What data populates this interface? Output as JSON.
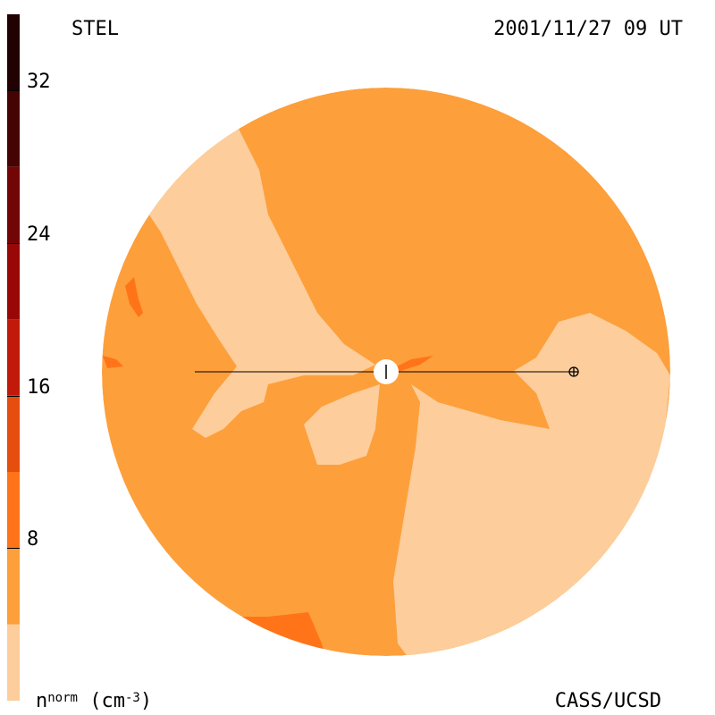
{
  "header": {
    "station": "STEL",
    "datetime": "2001/11/27 09 UT"
  },
  "footer": {
    "unit_prefix": "n",
    "unit_sup": "norm",
    "unit_suffix": " (cm",
    "unit_exp": "-3",
    "unit_close": ")",
    "credit": "CASS/UCSD"
  },
  "colorbar": {
    "ticks": [
      {
        "value": 8,
        "label": "8"
      },
      {
        "value": 16,
        "label": "16"
      },
      {
        "value": 24,
        "label": "24"
      },
      {
        "value": 32,
        "label": "32"
      }
    ],
    "range": [
      0,
      36
    ],
    "bands": [
      {
        "from": 0,
        "to": 4,
        "color": "#fdcd9b"
      },
      {
        "from": 4,
        "to": 8,
        "color": "#fd9f3b"
      },
      {
        "from": 8,
        "to": 12,
        "color": "#ff7418"
      },
      {
        "from": 12,
        "to": 16,
        "color": "#e54e0e"
      },
      {
        "from": 16,
        "to": 20,
        "color": "#c11a0a"
      },
      {
        "from": 20,
        "to": 24,
        "color": "#9a0707"
      },
      {
        "from": 24,
        "to": 28,
        "color": "#720606"
      },
      {
        "from": 28,
        "to": 32,
        "color": "#460303"
      },
      {
        "from": 32,
        "to": 36,
        "color": "#210101"
      }
    ]
  },
  "colors": {
    "background_density": "#fd9f3b",
    "low_density": "#fdcd9b",
    "high_density": "#ff7418",
    "sun": "#ffffff",
    "line": "#000000"
  }
}
